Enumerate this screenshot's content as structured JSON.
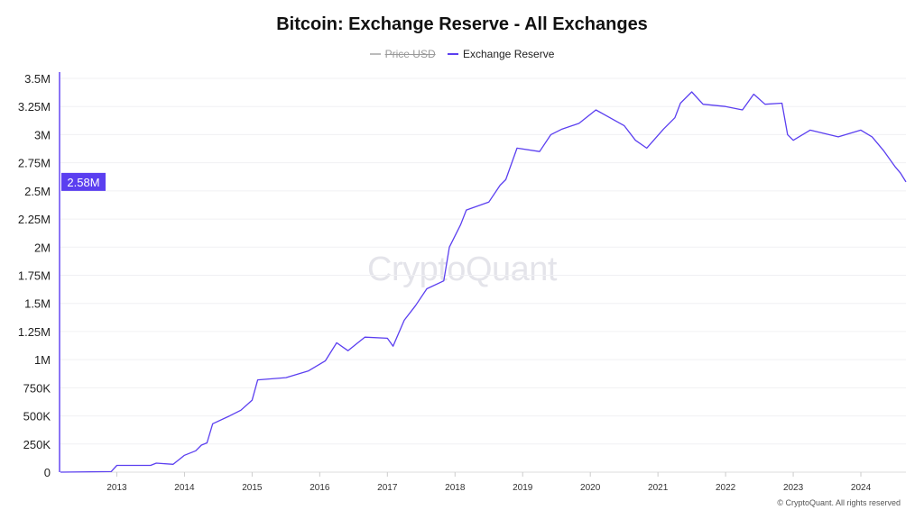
{
  "title": "Bitcoin: Exchange Reserve - All Exchanges",
  "watermark": "CryptoQuant",
  "copyright": "© CryptoQuant. All rights reserved",
  "legend": [
    {
      "label": "Price USD",
      "color": "#bbbbbb",
      "hidden": true
    },
    {
      "label": "Exchange Reserve",
      "color": "#5b3ff0",
      "hidden": false
    }
  ],
  "chart_data": {
    "type": "line",
    "title": "Bitcoin: Exchange Reserve - All Exchanges",
    "xlabel": "",
    "ylabel": "",
    "ylim": [
      0,
      3500000
    ],
    "xlim": [
      "2012-03",
      "2024-09"
    ],
    "yticks": [
      "0",
      "250K",
      "500K",
      "750K",
      "1M",
      "1.25M",
      "1.5M",
      "1.75M",
      "2M",
      "2.25M",
      "2.5M",
      "2.75M",
      "3M",
      "3.25M",
      "3.5M"
    ],
    "xticks": [
      "2013",
      "2014",
      "2015",
      "2016",
      "2017",
      "2018",
      "2019",
      "2020",
      "2021",
      "2022",
      "2023",
      "2024"
    ],
    "grid": true,
    "legend_position": "top",
    "current_value_label": "2.58M",
    "current_value": 2580000,
    "series": [
      {
        "name": "Exchange Reserve",
        "color": "#5b3ff0",
        "points": [
          [
            "2012-03",
            0
          ],
          [
            "2012-12",
            5000
          ],
          [
            "2013-01",
            60000
          ],
          [
            "2013-07",
            60000
          ],
          [
            "2013-08",
            80000
          ],
          [
            "2013-11",
            70000
          ],
          [
            "2014-01",
            150000
          ],
          [
            "2014-03",
            190000
          ],
          [
            "2014-04",
            240000
          ],
          [
            "2014-05",
            260000
          ],
          [
            "2014-06",
            430000
          ],
          [
            "2014-09",
            500000
          ],
          [
            "2014-11",
            550000
          ],
          [
            "2015-01",
            640000
          ],
          [
            "2015-02",
            820000
          ],
          [
            "2015-07",
            840000
          ],
          [
            "2015-11",
            900000
          ],
          [
            "2016-02",
            990000
          ],
          [
            "2016-04",
            1150000
          ],
          [
            "2016-06",
            1080000
          ],
          [
            "2016-09",
            1200000
          ],
          [
            "2017-01",
            1190000
          ],
          [
            "2017-02",
            1120000
          ],
          [
            "2017-04",
            1350000
          ],
          [
            "2017-06",
            1480000
          ],
          [
            "2017-08",
            1630000
          ],
          [
            "2017-11",
            1700000
          ],
          [
            "2017-12",
            2000000
          ],
          [
            "2018-02",
            2200000
          ],
          [
            "2018-03",
            2330000
          ],
          [
            "2018-07",
            2400000
          ],
          [
            "2018-09",
            2550000
          ],
          [
            "2018-10",
            2600000
          ],
          [
            "2018-12",
            2880000
          ],
          [
            "2019-04",
            2850000
          ],
          [
            "2019-06",
            3000000
          ],
          [
            "2019-08",
            3050000
          ],
          [
            "2019-11",
            3100000
          ],
          [
            "2020-02",
            3220000
          ],
          [
            "2020-07",
            3080000
          ],
          [
            "2020-09",
            2950000
          ],
          [
            "2020-11",
            2880000
          ],
          [
            "2021-02",
            3050000
          ],
          [
            "2021-04",
            3150000
          ],
          [
            "2021-05",
            3280000
          ],
          [
            "2021-07",
            3380000
          ],
          [
            "2021-09",
            3270000
          ],
          [
            "2022-01",
            3250000
          ],
          [
            "2022-04",
            3220000
          ],
          [
            "2022-06",
            3360000
          ],
          [
            "2022-08",
            3270000
          ],
          [
            "2022-11",
            3280000
          ],
          [
            "2022-12",
            3000000
          ],
          [
            "2023-01",
            2950000
          ],
          [
            "2023-04",
            3040000
          ],
          [
            "2023-09",
            2980000
          ],
          [
            "2024-01",
            3040000
          ],
          [
            "2024-03",
            2980000
          ],
          [
            "2024-05",
            2860000
          ],
          [
            "2024-07",
            2720000
          ],
          [
            "2024-08",
            2660000
          ],
          [
            "2024-09",
            2580000
          ]
        ]
      }
    ]
  }
}
